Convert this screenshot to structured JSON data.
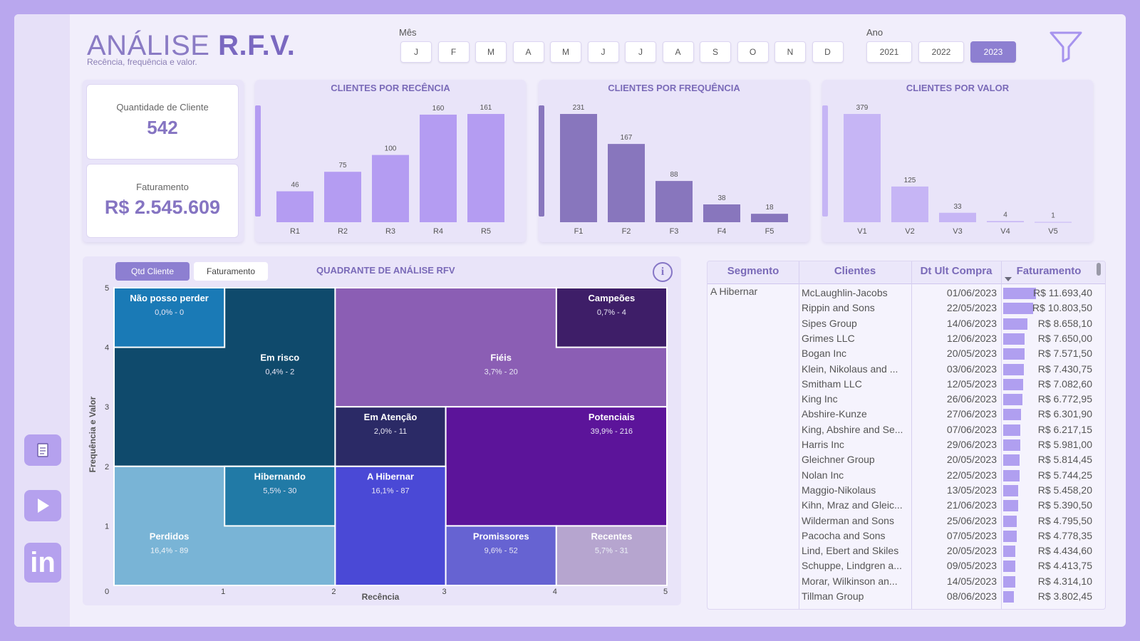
{
  "header": {
    "title_light": "ANÁLISE ",
    "title_bold": "R.F.V.",
    "subtitle": "Recência, frequência e valor.",
    "month_label": "Mês",
    "months": [
      "J",
      "F",
      "M",
      "A",
      "M",
      "J",
      "J",
      "A",
      "S",
      "O",
      "N",
      "D"
    ],
    "year_label": "Ano",
    "years": [
      "2021",
      "2022",
      "2023"
    ],
    "selected_year": "2023"
  },
  "kpis": {
    "clientes_label": "Quantidade de Cliente",
    "clientes_value": "542",
    "faturamento_label": "Faturamento",
    "faturamento_value": "R$ 2.545.609"
  },
  "charts": {
    "recencia": {
      "title": "CLIENTES POR RECÊNCIA",
      "categories": [
        "R1",
        "R2",
        "R3",
        "R4",
        "R5"
      ],
      "values": [
        46,
        75,
        100,
        160,
        161
      ],
      "color": "#b49cf2"
    },
    "frequencia": {
      "title": "CLIENTES POR FREQUÊNCIA",
      "categories": [
        "F1",
        "F2",
        "F3",
        "F4",
        "F5"
      ],
      "values": [
        231,
        167,
        88,
        38,
        18
      ],
      "color": "#8876bd"
    },
    "valor": {
      "title": "CLIENTES POR VALOR",
      "categories": [
        "V1",
        "V2",
        "V3",
        "V4",
        "V5"
      ],
      "values": [
        379,
        125,
        33,
        4,
        1
      ],
      "color": "#c6b5f5"
    }
  },
  "chart_data": [
    {
      "type": "bar",
      "title": "CLIENTES POR RECÊNCIA",
      "categories": [
        "R1",
        "R2",
        "R3",
        "R4",
        "R5"
      ],
      "values": [
        46,
        75,
        100,
        160,
        161
      ]
    },
    {
      "type": "bar",
      "title": "CLIENTES POR FREQUÊNCIA",
      "categories": [
        "F1",
        "F2",
        "F3",
        "F4",
        "F5"
      ],
      "values": [
        231,
        167,
        88,
        38,
        18
      ]
    },
    {
      "type": "bar",
      "title": "CLIENTES POR VALOR",
      "categories": [
        "V1",
        "V2",
        "V3",
        "V4",
        "V5"
      ],
      "values": [
        379,
        125,
        33,
        4,
        1
      ]
    },
    {
      "type": "heatmap",
      "title": "QUADRANTE DE ANÁLISE RFV",
      "xlabel": "Recência",
      "ylabel": "Frequência e Valor",
      "xlim": [
        0,
        5
      ],
      "ylim": [
        0,
        5
      ],
      "segments": [
        {
          "name": "Não posso perder",
          "pct": "0,0%",
          "count": 0,
          "x0": 0,
          "x1": 1,
          "y0": 4,
          "y1": 5,
          "color": "#1a7ab6",
          "text": "#ffffff"
        },
        {
          "name": "Em risco",
          "pct": "0,4%",
          "count": 2,
          "x0": 0,
          "x1": 2,
          "y0": 2,
          "y1": 5,
          "color": "#0f4a6c",
          "text": "#ffffff"
        },
        {
          "name": "Campeões",
          "pct": "0,7%",
          "count": 4,
          "x0": 4,
          "x1": 5,
          "y0": 4,
          "y1": 5,
          "color": "#3e1e68",
          "text": "#ffffff"
        },
        {
          "name": "Fiéis",
          "pct": "3,7%",
          "count": 20,
          "x0": 2,
          "x1": 5,
          "y0": 3,
          "y1": 5,
          "color": "#8b5eb4",
          "text": "#ffffff"
        },
        {
          "name": "Em Atenção",
          "pct": "2,0%",
          "count": 11,
          "x0": 2,
          "x1": 3,
          "y0": 2,
          "y1": 3,
          "color": "#2b2a66",
          "text": "#ffffff"
        },
        {
          "name": "Potenciais",
          "pct": "39,9%",
          "count": 216,
          "x0": 3,
          "x1": 5,
          "y0": 1,
          "y1": 3,
          "color": "#5c149a",
          "text": "#ffffff"
        },
        {
          "name": "Hibernando",
          "pct": "5,5%",
          "count": 30,
          "x0": 1,
          "x1": 2,
          "y0": 1,
          "y1": 2,
          "color": "#217aa6",
          "text": "#ffffff"
        },
        {
          "name": "A Hibernar",
          "pct": "16,1%",
          "count": 87,
          "x0": 2,
          "x1": 3,
          "y0": 0,
          "y1": 2,
          "color": "#4a49d6",
          "text": "#ffffff"
        },
        {
          "name": "Perdidos",
          "pct": "16,4%",
          "count": 89,
          "x0": 0,
          "x1": 2,
          "y0": 0,
          "y1": 2,
          "color": "#79b4d6",
          "text": "#ffffff"
        },
        {
          "name": "Promissores",
          "pct": "9,6%",
          "count": 52,
          "x0": 3,
          "x1": 4,
          "y0": 0,
          "y1": 1,
          "color": "#6663d2",
          "text": "#ffffff"
        },
        {
          "name": "Recentes",
          "pct": "5,7%",
          "count": 31,
          "x0": 4,
          "x1": 5,
          "y0": 0,
          "y1": 1,
          "color": "#b6a5cf",
          "text": "#ffffff"
        }
      ]
    }
  ],
  "quadrant": {
    "tabs": [
      "Qtd Cliente",
      "Faturamento"
    ],
    "title": "QUADRANTE DE ANÁLISE RFV",
    "xlabel": "Recência",
    "ylabel": "Frequência e Valor",
    "x_ticks": [
      "0",
      "1",
      "2",
      "3",
      "4",
      "5"
    ],
    "y_ticks": [
      "1",
      "2",
      "3",
      "4",
      "5"
    ]
  },
  "table": {
    "columns": [
      "Segmento",
      "Clientes",
      "Dt Ult Compra",
      "Faturamento"
    ],
    "segment": "A Hibernar",
    "max_value": 11693.4,
    "rows": [
      {
        "cliente": "McLaughlin-Jacobs",
        "data": "01/06/2023",
        "fat": "R$ 11.693,40",
        "v": 11693.4
      },
      {
        "cliente": "Rippin and Sons",
        "data": "22/05/2023",
        "fat": "R$ 10.803,50",
        "v": 10803.5
      },
      {
        "cliente": "Sipes Group",
        "data": "14/06/2023",
        "fat": "R$ 8.658,10",
        "v": 8658.1
      },
      {
        "cliente": "Grimes LLC",
        "data": "12/06/2023",
        "fat": "R$ 7.650,00",
        "v": 7650.0
      },
      {
        "cliente": "Bogan Inc",
        "data": "20/05/2023",
        "fat": "R$ 7.571,50",
        "v": 7571.5
      },
      {
        "cliente": "Klein, Nikolaus and ...",
        "data": "03/06/2023",
        "fat": "R$ 7.430,75",
        "v": 7430.75
      },
      {
        "cliente": "Smitham LLC",
        "data": "12/05/2023",
        "fat": "R$ 7.082,60",
        "v": 7082.6
      },
      {
        "cliente": "King Inc",
        "data": "26/06/2023",
        "fat": "R$ 6.772,95",
        "v": 6772.95
      },
      {
        "cliente": "Abshire-Kunze",
        "data": "27/06/2023",
        "fat": "R$ 6.301,90",
        "v": 6301.9
      },
      {
        "cliente": "King, Abshire and Se...",
        "data": "07/06/2023",
        "fat": "R$ 6.217,15",
        "v": 6217.15
      },
      {
        "cliente": "Harris Inc",
        "data": "29/06/2023",
        "fat": "R$ 5.981,00",
        "v": 5981.0
      },
      {
        "cliente": "Gleichner Group",
        "data": "20/05/2023",
        "fat": "R$ 5.814,45",
        "v": 5814.45
      },
      {
        "cliente": "Nolan Inc",
        "data": "22/05/2023",
        "fat": "R$ 5.744,25",
        "v": 5744.25
      },
      {
        "cliente": "Maggio-Nikolaus",
        "data": "13/05/2023",
        "fat": "R$ 5.458,20",
        "v": 5458.2
      },
      {
        "cliente": "Kihn, Mraz and Gleic...",
        "data": "21/06/2023",
        "fat": "R$ 5.390,50",
        "v": 5390.5
      },
      {
        "cliente": "Wilderman and Sons",
        "data": "25/06/2023",
        "fat": "R$ 4.795,50",
        "v": 4795.5
      },
      {
        "cliente": "Pacocha and Sons",
        "data": "07/05/2023",
        "fat": "R$ 4.778,35",
        "v": 4778.35
      },
      {
        "cliente": "Lind, Ebert and Skiles",
        "data": "20/05/2023",
        "fat": "R$ 4.434,60",
        "v": 4434.6
      },
      {
        "cliente": "Schuppe, Lindgren a...",
        "data": "09/05/2023",
        "fat": "R$ 4.413,75",
        "v": 4413.75
      },
      {
        "cliente": "Morar, Wilkinson an...",
        "data": "14/05/2023",
        "fat": "R$ 4.314,10",
        "v": 4314.1
      },
      {
        "cliente": "Tillman Group",
        "data": "08/06/2023",
        "fat": "R$ 3.802,45",
        "v": 3802.45
      }
    ]
  },
  "sidebar": {
    "icons": [
      "document-icon",
      "play-icon",
      "linkedin-icon"
    ],
    "linkedin_text": "in"
  }
}
